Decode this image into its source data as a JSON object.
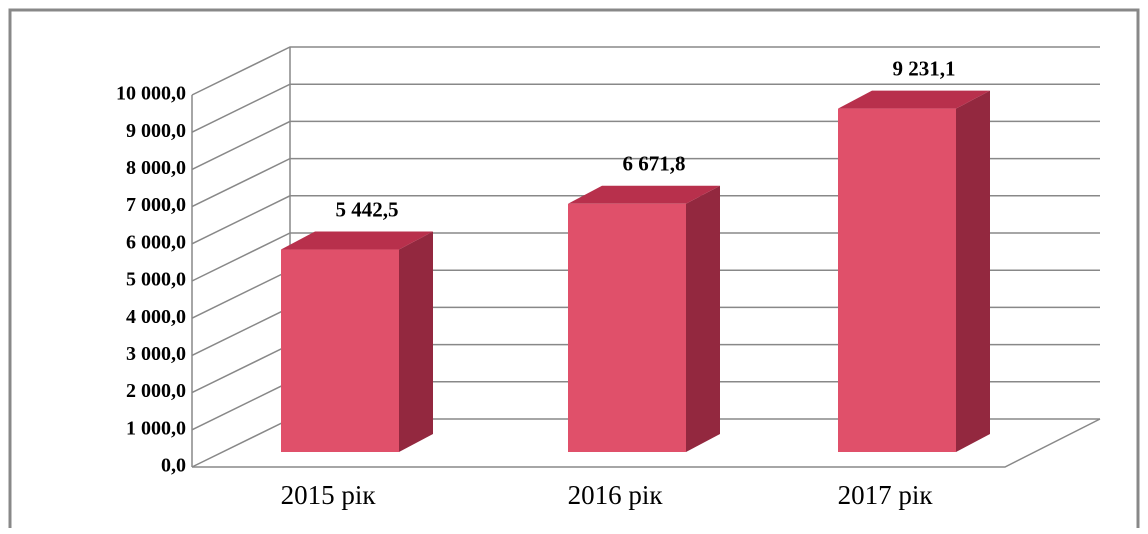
{
  "chart_data": {
    "type": "bar3d",
    "categories": [
      "2015 рік",
      "2016 рік",
      "2017 рік"
    ],
    "values": [
      5442.5,
      6671.8,
      9231.1
    ],
    "value_labels": [
      "5 442,5",
      "6 671,8",
      "9 231,1"
    ],
    "color": "#e0506a",
    "ylim": [
      0,
      10000
    ],
    "yticks": [
      {
        "value": 0,
        "label": "0,0"
      },
      {
        "value": 1000,
        "label": "1 000,0"
      },
      {
        "value": 2000,
        "label": "2 000,0"
      },
      {
        "value": 3000,
        "label": "3 000,0"
      },
      {
        "value": 4000,
        "label": "4 000,0"
      },
      {
        "value": 5000,
        "label": "5 000,0"
      },
      {
        "value": 6000,
        "label": "6 000,0"
      },
      {
        "value": 7000,
        "label": "7 000,0"
      },
      {
        "value": 8000,
        "label": "8 000,0"
      },
      {
        "value": 9000,
        "label": "9 000,0"
      },
      {
        "value": 10000,
        "label": "10 000,0"
      }
    ],
    "grid": true
  }
}
